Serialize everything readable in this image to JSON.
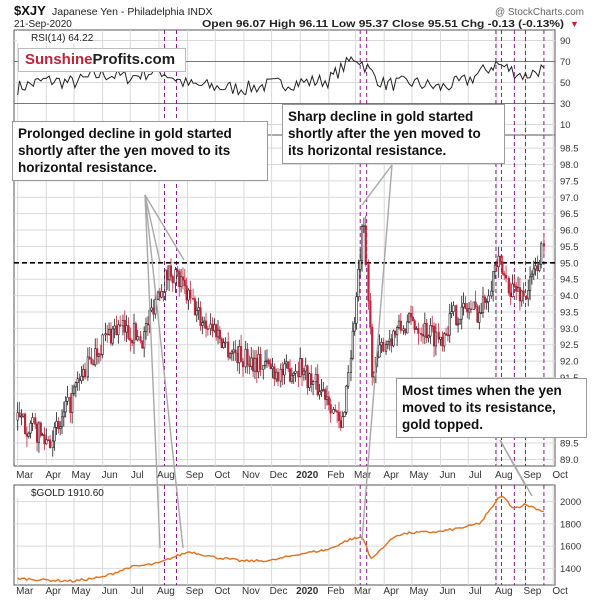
{
  "header": {
    "symbol": "$XJY",
    "description": "Japanese Yen - Philadelphia INDX",
    "date": "21-Sep-2020",
    "quote": "Open 96.07  High 96.11  Low 95.37  Close 95.51  Chg -0.13 (-0.13%)",
    "credit": "@ StockCharts.com",
    "down_marker": "▼"
  },
  "brand": {
    "part1": "Sunshine",
    "part2": "Profits.com"
  },
  "annotations": [
    "Prolonged decline in gold started shortly after the yen moved to its horizontal resistance.",
    "Sharp decline in gold started shortly after the yen moved to its horizontal resistance.",
    "Most times when the yen moved to its resistance, gold topped."
  ],
  "colors": {
    "candle_up": "#1a1a1a",
    "candle_down": "#c0233a",
    "gold_line": "#e46f1a",
    "vline": "#8b1a8b",
    "rsi_line": "#222222",
    "grid": "#d9d9d9",
    "resistance": "#000000"
  },
  "chart_data": [
    {
      "type": "line",
      "name": "RSI(14)",
      "legend": "RSI(14) 64.22",
      "last_value": 64.22,
      "ylim": [
        0,
        100
      ],
      "yticks": [
        10,
        30,
        50,
        70,
        90
      ],
      "reference_levels": [
        30,
        70
      ],
      "x": [
        "2019-03-01",
        "2019-04-01",
        "2019-05-01",
        "2019-06-01",
        "2019-07-01",
        "2019-08-01",
        "2019-09-01",
        "2019-10-01",
        "2019-11-01",
        "2019-12-01",
        "2020-01-01",
        "2020-02-01",
        "2020-03-01",
        "2020-04-01",
        "2020-05-01",
        "2020-06-01",
        "2020-07-01",
        "2020-08-01",
        "2020-09-01",
        "2020-09-21"
      ],
      "values": [
        45,
        52,
        50,
        58,
        55,
        62,
        48,
        46,
        44,
        48,
        50,
        52,
        75,
        48,
        50,
        45,
        52,
        68,
        56,
        64
      ]
    },
    {
      "type": "candlestick",
      "name": "$XJY",
      "ylim": [
        88.8,
        98.9
      ],
      "yticks": [
        89.0,
        89.5,
        90.0,
        90.5,
        91.0,
        91.5,
        92.0,
        92.5,
        93.0,
        93.5,
        94.0,
        94.5,
        95.0,
        95.5,
        96.0,
        96.5,
        97.0,
        97.5,
        98.0,
        98.5
      ],
      "resistance_level": 95.0,
      "x": [
        "2019-03-01",
        "2019-03-15",
        "2019-04-01",
        "2019-04-15",
        "2019-05-01",
        "2019-05-15",
        "2019-06-01",
        "2019-06-15",
        "2019-07-01",
        "2019-07-15",
        "2019-08-01",
        "2019-08-15",
        "2019-09-01",
        "2019-09-15",
        "2019-10-01",
        "2019-10-15",
        "2019-11-01",
        "2019-11-15",
        "2019-12-01",
        "2019-12-15",
        "2020-01-01",
        "2020-01-15",
        "2020-02-01",
        "2020-02-15",
        "2020-03-01",
        "2020-03-10",
        "2020-03-20",
        "2020-04-01",
        "2020-04-15",
        "2020-05-01",
        "2020-05-15",
        "2020-06-01",
        "2020-06-15",
        "2020-07-01",
        "2020-07-15",
        "2020-08-01",
        "2020-08-15",
        "2020-09-01",
        "2020-09-10",
        "2020-09-21"
      ],
      "close": [
        90.2,
        90.0,
        89.6,
        89.9,
        91.0,
        91.8,
        92.6,
        93.0,
        92.9,
        92.7,
        94.2,
        94.8,
        94.0,
        93.3,
        93.0,
        92.4,
        92.1,
        92.0,
        91.8,
        91.6,
        91.9,
        91.3,
        91.0,
        89.8,
        93.5,
        96.2,
        91.5,
        92.6,
        92.9,
        93.2,
        93.0,
        92.7,
        93.4,
        93.6,
        93.5,
        95.0,
        94.3,
        94.0,
        94.6,
        95.51
      ]
    },
    {
      "type": "line",
      "name": "$GOLD",
      "legend": "$GOLD 1910.60",
      "last_value": 1910.6,
      "ylim": [
        1250,
        2150
      ],
      "yticks": [
        1400,
        1600,
        1800,
        2000
      ],
      "x": [
        "2019-03-01",
        "2019-04-01",
        "2019-05-01",
        "2019-06-01",
        "2019-07-01",
        "2019-08-01",
        "2019-08-20",
        "2019-09-04",
        "2019-10-01",
        "2019-11-01",
        "2019-12-01",
        "2020-01-01",
        "2020-02-01",
        "2020-02-24",
        "2020-03-09",
        "2020-03-19",
        "2020-04-01",
        "2020-04-15",
        "2020-05-01",
        "2020-06-01",
        "2020-07-01",
        "2020-07-15",
        "2020-08-06",
        "2020-08-20",
        "2020-09-01",
        "2020-09-10",
        "2020-09-21"
      ],
      "values": [
        1310,
        1295,
        1285,
        1320,
        1410,
        1445,
        1510,
        1550,
        1500,
        1465,
        1470,
        1530,
        1570,
        1660,
        1680,
        1480,
        1600,
        1700,
        1720,
        1730,
        1775,
        1810,
        2060,
        1940,
        1975,
        1950,
        1910.6
      ]
    }
  ],
  "x_axis": {
    "months": [
      {
        "label": "Mar",
        "date": "2019-03-01"
      },
      {
        "label": "Apr",
        "date": "2019-04-01"
      },
      {
        "label": "May",
        "date": "2019-05-01"
      },
      {
        "label": "Jun",
        "date": "2019-06-01"
      },
      {
        "label": "Jul",
        "date": "2019-07-01"
      },
      {
        "label": "Aug",
        "date": "2019-08-01"
      },
      {
        "label": "Sep",
        "date": "2019-09-01"
      },
      {
        "label": "Oct",
        "date": "2019-10-01"
      },
      {
        "label": "Nov",
        "date": "2019-11-01"
      },
      {
        "label": "Dec",
        "date": "2019-12-01"
      },
      {
        "label": "2020",
        "date": "2020-01-01"
      },
      {
        "label": "Feb",
        "date": "2020-02-01"
      },
      {
        "label": "Mar",
        "date": "2020-03-01"
      },
      {
        "label": "Apr",
        "date": "2020-04-01"
      },
      {
        "label": "May",
        "date": "2020-05-01"
      },
      {
        "label": "Jun",
        "date": "2020-06-01"
      },
      {
        "label": "Jul",
        "date": "2020-07-01"
      },
      {
        "label": "Aug",
        "date": "2020-08-01"
      },
      {
        "label": "Sep",
        "date": "2020-09-01"
      },
      {
        "label": "Oct",
        "date": "2020-10-01"
      }
    ],
    "vertical_lines": [
      "2019-08-07",
      "2019-08-20",
      "2020-03-06",
      "2020-03-13",
      "2020-07-31",
      "2020-08-06",
      "2020-08-20",
      "2020-09-01",
      "2020-09-21"
    ]
  }
}
